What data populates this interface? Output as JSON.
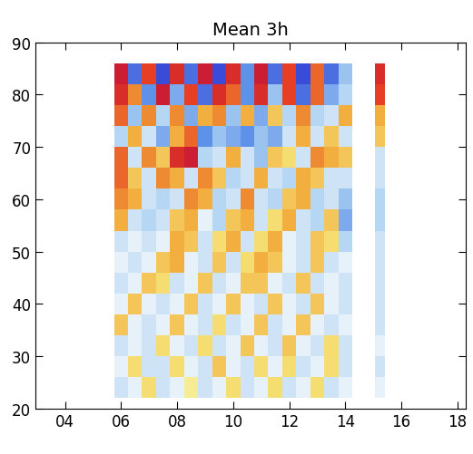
{
  "chart_data": {
    "type": "heatmap",
    "title": "Mean 3h",
    "xlim": [
      2.95,
      18.3
    ],
    "xticks": [
      {
        "value": 4,
        "label": "04"
      },
      {
        "value": 6,
        "label": "06"
      },
      {
        "value": 8,
        "label": "08"
      },
      {
        "value": 10,
        "label": "10"
      },
      {
        "value": 12,
        "label": "12"
      },
      {
        "value": 14,
        "label": "14"
      },
      {
        "value": 16,
        "label": "16"
      },
      {
        "value": 18,
        "label": "18"
      }
    ],
    "ylim": [
      20,
      90
    ],
    "yticks": [
      20,
      30,
      40,
      50,
      60,
      70,
      80,
      90
    ],
    "zlim": [
      -1,
      1
    ],
    "x_edges": [
      5.75,
      6.25,
      6.75,
      7.25,
      7.75,
      8.25,
      8.75,
      9.25,
      9.75,
      10.25,
      10.75,
      11.25,
      11.75,
      12.25,
      12.75,
      13.25,
      13.75,
      14.25,
      15.05,
      15.4
    ],
    "y_edges": [
      22,
      26,
      30,
      34,
      38,
      42,
      46,
      50,
      54,
      58,
      62,
      66,
      70,
      74,
      78,
      82,
      86
    ],
    "cells": [
      [
        -0.3,
        -0.2,
        0.2,
        -0.3,
        -0.2,
        0.1,
        -0.3,
        -0.2,
        0.2,
        -0.3,
        -0.2,
        0.2,
        -0.3,
        -0.2,
        0.2,
        -0.3,
        -0.2,
        null,
        -0.2
      ],
      [
        -0.2,
        0.2,
        -0.3,
        -0.3,
        0.2,
        -0.2,
        -0.3,
        0.3,
        -0.2,
        -0.3,
        0.2,
        -0.2,
        0.2,
        -0.3,
        -0.2,
        0.2,
        -0.3,
        null,
        -0.3
      ],
      [
        -0.3,
        -0.2,
        -0.3,
        0.2,
        -0.2,
        -0.3,
        0.2,
        -0.3,
        -0.2,
        0.3,
        -0.2,
        -0.3,
        0.3,
        -0.2,
        -0.3,
        0.2,
        -0.3,
        null,
        -0.2
      ],
      [
        0.3,
        -0.2,
        -0.3,
        -0.2,
        0.3,
        -0.2,
        -0.3,
        0.2,
        -0.3,
        -0.2,
        0.3,
        -0.3,
        -0.2,
        0.3,
        -0.2,
        -0.3,
        -0.2,
        null,
        -0.3
      ],
      [
        -0.2,
        0.3,
        -0.2,
        -0.3,
        -0.2,
        0.3,
        -0.3,
        -0.2,
        0.3,
        -0.2,
        -0.3,
        0.3,
        -0.2,
        -0.3,
        0.3,
        -0.2,
        -0.3,
        null,
        -0.3
      ],
      [
        -0.3,
        -0.2,
        0.3,
        0.2,
        -0.3,
        -0.2,
        0.3,
        -0.3,
        -0.2,
        0.3,
        0.3,
        -0.2,
        -0.3,
        0.3,
        -0.3,
        -0.2,
        -0.3,
        null,
        -0.3
      ],
      [
        -0.2,
        -0.3,
        -0.2,
        0.3,
        0.4,
        -0.2,
        -0.3,
        0.3,
        -0.3,
        0.2,
        0.4,
        0.3,
        -0.2,
        -0.3,
        0.3,
        -0.3,
        -0.2,
        null,
        -0.3
      ],
      [
        -0.3,
        -0.2,
        -0.3,
        -0.2,
        0.4,
        0.3,
        -0.3,
        0.2,
        0.4,
        -0.3,
        0.2,
        0.4,
        -0.2,
        -0.3,
        0.3,
        0.2,
        -0.4,
        null,
        -0.3
      ],
      [
        0.4,
        -0.3,
        -0.4,
        -0.3,
        0.3,
        0.4,
        -0.2,
        -0.4,
        0.3,
        0.4,
        -0.3,
        0.2,
        0.4,
        -0.3,
        -0.4,
        0.3,
        -0.6,
        null,
        -0.4
      ],
      [
        0.5,
        0.4,
        -0.3,
        -0.4,
        -0.3,
        0.5,
        0.4,
        -0.4,
        -0.3,
        0.5,
        -0.3,
        -0.4,
        0.3,
        0.4,
        -0.4,
        -0.3,
        -0.5,
        null,
        -0.4
      ],
      [
        0.6,
        0.3,
        -0.3,
        0.5,
        0.4,
        -0.3,
        0.5,
        0.3,
        -0.4,
        -0.3,
        0.4,
        -0.3,
        -0.4,
        0.4,
        0.3,
        -0.3,
        -0.3,
        null,
        -0.3
      ],
      [
        0.6,
        -0.3,
        0.5,
        0.3,
        0.8,
        0.9,
        -0.4,
        -0.3,
        0.4,
        -0.3,
        -0.5,
        0.3,
        0.2,
        -0.3,
        0.5,
        0.4,
        0.3,
        null,
        -0.3
      ],
      [
        -0.4,
        0.4,
        -0.3,
        -0.6,
        0.4,
        0.6,
        -0.7,
        -0.5,
        -0.6,
        -0.7,
        -0.5,
        -0.6,
        -0.3,
        0.4,
        -0.3,
        0.3,
        -0.3,
        null,
        0.3
      ],
      [
        0.6,
        -0.5,
        0.5,
        -0.4,
        0.5,
        -0.6,
        0.4,
        0.5,
        -0.5,
        0.4,
        -0.6,
        0.3,
        -0.4,
        0.5,
        -0.4,
        -0.3,
        0.4,
        null,
        0.4
      ],
      [
        0.8,
        0.5,
        -0.7,
        0.9,
        -0.6,
        0.7,
        -0.8,
        0.8,
        0.6,
        -0.7,
        0.8,
        -0.5,
        0.7,
        -0.8,
        0.6,
        -0.6,
        -0.4,
        null,
        0.7
      ],
      [
        0.9,
        -0.8,
        0.7,
        -0.9,
        0.8,
        -0.8,
        0.9,
        -0.9,
        0.8,
        -0.7,
        0.9,
        -0.8,
        0.7,
        -0.9,
        0.6,
        -0.8,
        -0.5,
        null,
        0.8
      ]
    ]
  }
}
